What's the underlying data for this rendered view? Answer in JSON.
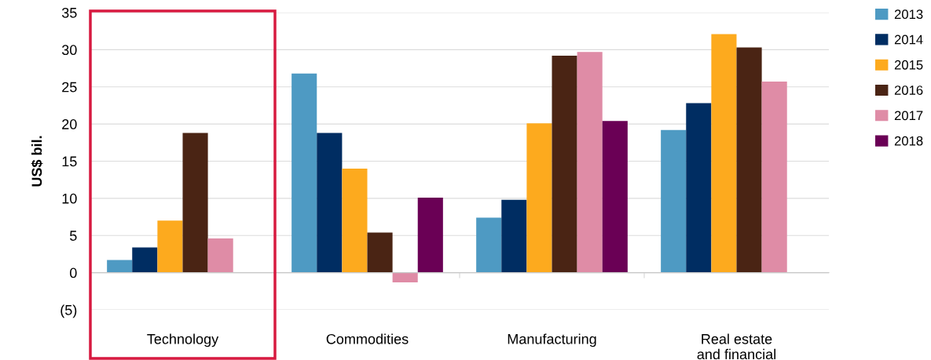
{
  "chart_data": {
    "type": "bar",
    "ylabel": "US$ bil.",
    "categories": [
      "Technology",
      "Commodities",
      "Manufacturing",
      "Real estate\nand financial"
    ],
    "series": [
      {
        "name": "2013",
        "color": "#4e9ac3",
        "values": [
          1.7,
          26.8,
          7.4,
          19.2
        ]
      },
      {
        "name": "2014",
        "color": "#002d62",
        "values": [
          3.4,
          18.8,
          9.8,
          22.8
        ]
      },
      {
        "name": "2015",
        "color": "#fdaa1e",
        "values": [
          7.0,
          14.0,
          20.1,
          32.1
        ]
      },
      {
        "name": "2016",
        "color": "#4a2414",
        "values": [
          18.8,
          5.4,
          29.2,
          30.3
        ]
      },
      {
        "name": "2017",
        "color": "#df8ca6",
        "values": [
          4.6,
          -1.3,
          29.7,
          25.7
        ]
      },
      {
        "name": "2018",
        "color": "#6a0055",
        "values": [
          null,
          10.1,
          20.4,
          null
        ]
      }
    ],
    "ylim": [
      -5,
      35
    ],
    "yticks": [
      {
        "value": -5,
        "label": "(5)"
      },
      0,
      5,
      10,
      15,
      20,
      25,
      30,
      35
    ],
    "grid": "y",
    "legend": "right"
  }
}
